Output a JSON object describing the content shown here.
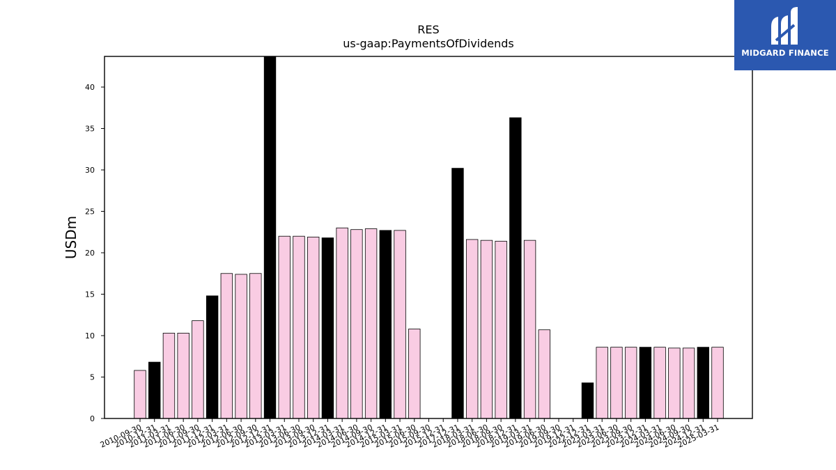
{
  "brand": {
    "name": "MIDGARD FINANCE",
    "bg_color": "#2b58b0",
    "mark_icon": "midgard-logo-icon"
  },
  "chart_data": {
    "type": "bar",
    "title": "RES",
    "subtitle": "us-gaap:PaymentsOfDividends",
    "xlabel": "",
    "ylabel": "USDm",
    "ylim": [
      0,
      43.7
    ],
    "yticks": [
      0,
      5,
      10,
      15,
      20,
      25,
      30,
      35,
      40
    ],
    "grid": false,
    "legend": "none",
    "colors": {
      "quarterly": "#f9cce3",
      "annual": "#000000",
      "edge": "#000000"
    },
    "categories": [
      "2010-09-30",
      "2010-12-31",
      "2011-03-31",
      "2011-06-30",
      "2011-09-30",
      "2011-12-31",
      "2012-03-31",
      "2012-06-30",
      "2012-09-30",
      "2012-12-31",
      "2013-03-31",
      "2013-06-30",
      "2013-09-30",
      "2013-12-31",
      "2014-03-31",
      "2014-06-30",
      "2014-09-30",
      "2014-12-31",
      "2015-03-31",
      "2015-06-30",
      "2015-09-30",
      "2015-12-31",
      "2017-12-31",
      "2018-03-31",
      "2018-06-30",
      "2018-09-30",
      "2018-12-31",
      "2019-03-31",
      "2019-06-30",
      "2019-09-30",
      "2019-12-31",
      "2022-12-31",
      "2023-03-31",
      "2023-06-30",
      "2023-09-30",
      "2023-12-31",
      "2024-03-31",
      "2024-06-30",
      "2024-09-30",
      "2024-12-31",
      "2025-03-31"
    ],
    "values": [
      5.8,
      6.8,
      10.3,
      10.3,
      11.8,
      14.8,
      17.5,
      17.4,
      17.5,
      43.7,
      22.0,
      22.0,
      21.9,
      21.8,
      23.0,
      22.8,
      22.9,
      22.7,
      22.7,
      10.8,
      0,
      0,
      30.2,
      21.6,
      21.5,
      21.4,
      36.3,
      21.5,
      10.7,
      0,
      0,
      4.3,
      8.6,
      8.6,
      8.6,
      8.6,
      8.6,
      8.5,
      8.5,
      8.6,
      8.6
    ],
    "is_annual": [
      false,
      true,
      false,
      false,
      false,
      true,
      false,
      false,
      false,
      true,
      false,
      false,
      false,
      true,
      false,
      false,
      false,
      true,
      false,
      false,
      false,
      true,
      true,
      false,
      false,
      false,
      true,
      false,
      false,
      false,
      true,
      true,
      false,
      false,
      false,
      true,
      false,
      false,
      false,
      true,
      false
    ]
  }
}
